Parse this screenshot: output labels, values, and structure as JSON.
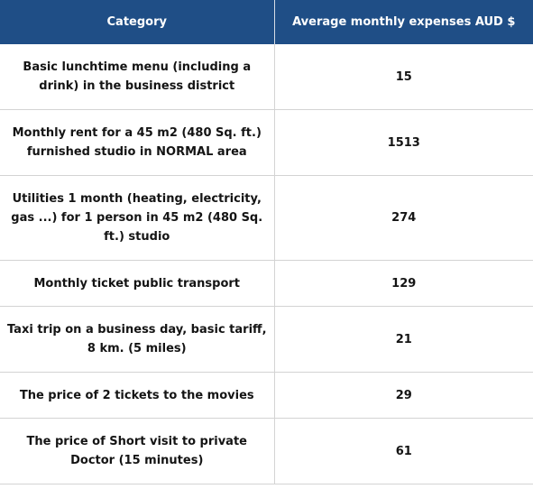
{
  "table": {
    "headers": {
      "category": "Category",
      "expense": "Average monthly expenses AUD $"
    },
    "rows": [
      {
        "category": "Basic lunchtime menu (including a drink) in the business district",
        "value": "15"
      },
      {
        "category": "Monthly rent for a 45 m2 (480 Sq. ft.) furnished studio in NORMAL area",
        "value": "1513"
      },
      {
        "category": "Utilities 1 month (heating, electricity, gas ...) for 1 person in 45 m2 (480 Sq. ft.) studio",
        "value": "274"
      },
      {
        "category": "Monthly ticket public transport",
        "value": "129"
      },
      {
        "category": "Taxi trip on a business day, basic tariff, 8 km. (5 miles)",
        "value": "21"
      },
      {
        "category": "The price of 2 tickets to the movies",
        "value": "29"
      },
      {
        "category": "The price of Short visit to private Doctor (15 minutes)",
        "value": "61"
      }
    ]
  },
  "colors": {
    "header_background": "#1f4e86",
    "header_text": "#ffffff",
    "grid_line": "#d3d3d3"
  }
}
